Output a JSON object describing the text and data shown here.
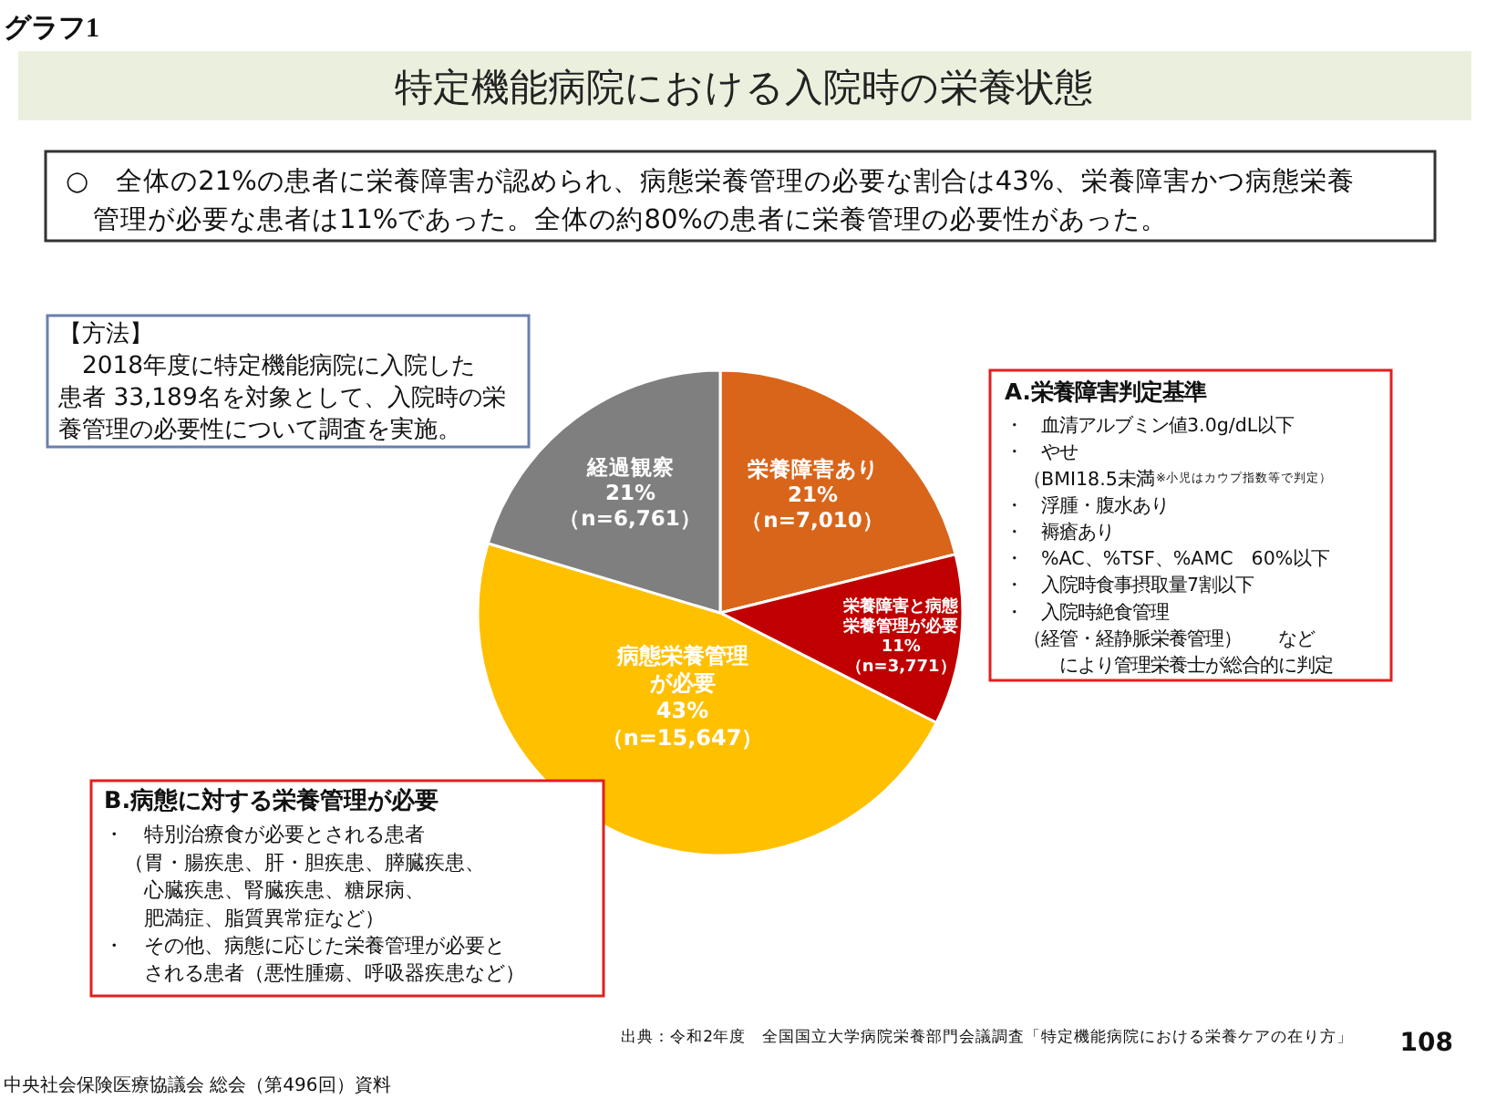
{
  "chart_data": {
    "type": "pie",
    "title": "特定機能病院における入院時の栄養状態",
    "categories": [
      "栄養障害あり",
      "栄養障害と病態栄養管理が必要",
      "病態栄養管理が必要",
      "経過観察"
    ],
    "values": [
      7010,
      3771,
      15647,
      6761
    ],
    "colors": [
      "#d9651a",
      "#c00000",
      "#ffc000",
      "#7f7f7f"
    ],
    "value_labels": [
      "21%\n（n=7,010）",
      "11%\n（n=3,771）",
      "43%\n（n=15,647）",
      "21%\n（n=6,761）"
    ],
    "annotations": [
      "グラフ1",
      "○　全体の21%の患者に栄養障害が認められ、病態栄養管理の必要な割合は43%、栄養障害かつ病態栄養",
      "　管理が必要な患者は11%であった。全体の約80%の患者に栄養管理の必要性があった。",
      "【方法】",
      "　2018年度に特定機能病院に入院した",
      "患者 33,189名を対象として、入院時の栄",
      "養管理の必要性について調査を実施。",
      "A.栄養障害判定基準",
      "・　血清アルブミン値3.0g/dL以下",
      "・　やせ",
      "　（BMI18.5未満",
      "・　浮腫・腹水あり",
      "・　褥瘡あり",
      "・　%AC、%TSF、%AMC　60%以下",
      "・　入院時食事摂取量7割以下",
      "・　入院時絶食管理",
      "　（経管・経静脈栄養管理）　　など",
      "　　　により管理栄養士が総合的に判定",
      "※小児はカウプ指数等で判定）",
      "B.病態に対する栄養管理が必要",
      "・　特別治療食が必要とされる患者",
      "　（胃・腸疾患、肝・胆疾患、膵臓疾患、",
      "　　心臓疾患、腎臓疾患、糖尿病、",
      "　　肥満症、脂質異常症など）",
      "・　その他、病態に応じた栄養管理が必要と",
      "　　される患者（悪性腫瘍、呼吸器疾患など）",
      "出典：令和2年度　全国国立大学病院栄養部門会議調査「特定機能病院における栄養ケアの在り方」",
      "108",
      "中央社会保険医療協議会 総会（第496回）資料"
    ]
  }
}
